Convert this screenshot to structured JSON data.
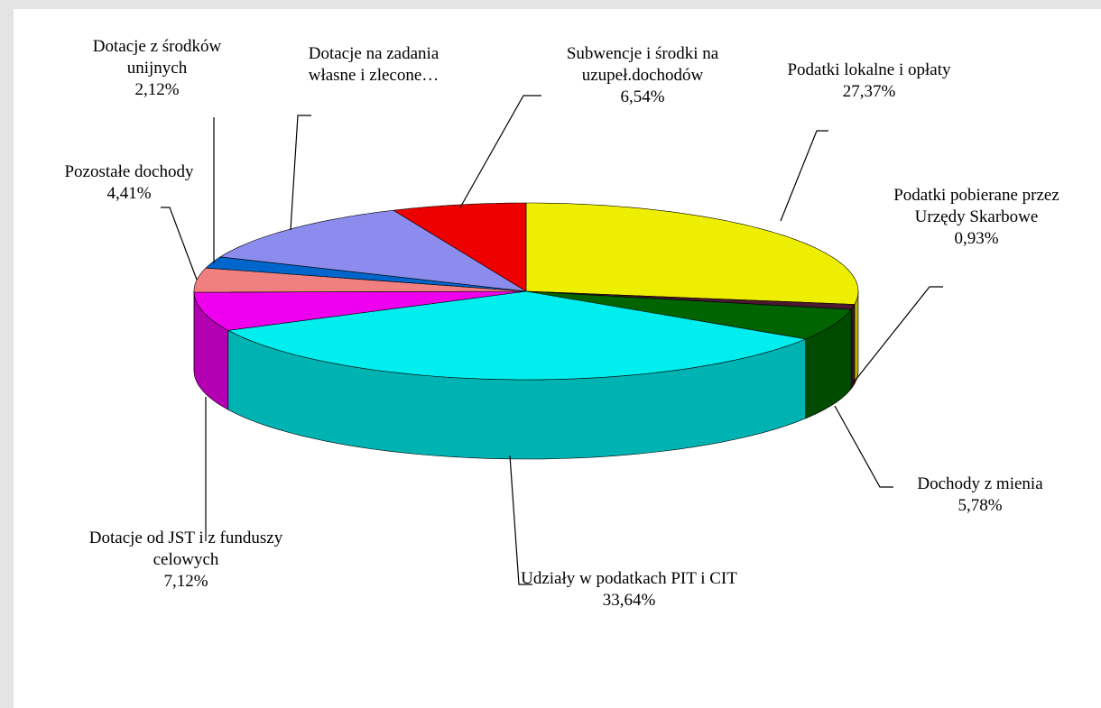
{
  "chart_data": {
    "type": "pie3d",
    "categories": [
      "Podatki lokalne i opłaty",
      "Podatki pobierane przez Urzędy Skarbowe",
      "Dochody z mienia",
      "Udziały w podatkach PIT i CIT",
      "Dotacje od JST i z funduszy celowych",
      "Pozostałe dochody",
      "Dotacje z środków unijnych",
      "Dotacje na zadania własne i zlecone…",
      "Subwencje i środki na uzupeł.dochodów"
    ],
    "values": [
      27.37,
      0.93,
      5.78,
      33.64,
      7.12,
      4.41,
      2.12,
      12.09,
      6.54
    ],
    "value_labels": [
      "27,37%",
      "0,93%",
      "5,78%",
      "33,64%",
      "7,12%",
      "4,41%",
      "2,12%",
      null,
      "6,54%"
    ],
    "colors": [
      "#eeee00",
      "#4a1830",
      "#006400",
      "#00eeee",
      "#ee00ee",
      "#f08080",
      "#0066cc",
      "#8c8cee",
      "#ee0000"
    ]
  }
}
